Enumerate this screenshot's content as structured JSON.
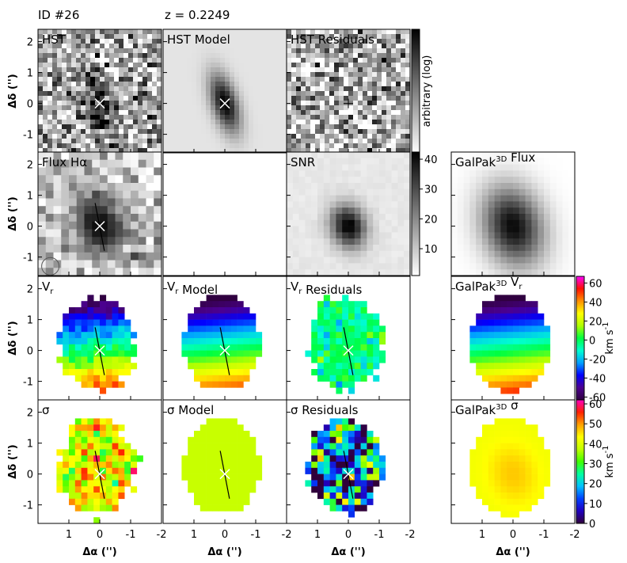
{
  "header": {
    "id": "ID #26",
    "redshift": "z = 0.2249"
  },
  "axes": {
    "xlabel": "Δα ('')",
    "ylabel": "Δδ ('')",
    "xlim": [
      2,
      -2
    ],
    "ylim": [
      -1.6,
      2.4
    ],
    "xticks": [
      1,
      0,
      -1,
      -2
    ],
    "yticks": [
      -1,
      0,
      1,
      2
    ]
  },
  "rows": [
    [
      {
        "title": [
          {
            "text": "HST"
          }
        ]
      },
      {
        "title": [
          {
            "text": "HST Model"
          }
        ]
      },
      {
        "title": [
          {
            "text": "HST Residuals"
          }
        ]
      },
      null
    ],
    [
      {
        "title": [
          {
            "text": "Flux Hα"
          }
        ]
      },
      null,
      {
        "title": [
          {
            "text": "SNR"
          }
        ]
      },
      {
        "title": [
          {
            "text": "GalPak"
          },
          {
            "sup": "3D"
          },
          {
            "text": " Flux"
          }
        ]
      }
    ],
    [
      {
        "title": [
          {
            "text": "V"
          },
          {
            "sub": "r"
          }
        ]
      },
      {
        "title": [
          {
            "text": "V"
          },
          {
            "sub": "r"
          },
          {
            "text": " Model"
          }
        ]
      },
      {
        "title": [
          {
            "text": "V"
          },
          {
            "sub": "r"
          },
          {
            "text": " Residuals"
          }
        ]
      },
      {
        "title": [
          {
            "text": "GalPak"
          },
          {
            "sup": "3D"
          },
          {
            "text": " V"
          },
          {
            "sub": "r"
          }
        ]
      }
    ],
    [
      {
        "title": [
          {
            "text": "σ"
          }
        ]
      },
      {
        "title": [
          {
            "text": "σ Model"
          }
        ]
      },
      {
        "title": [
          {
            "text": "σ Residuals"
          }
        ]
      },
      {
        "title": [
          {
            "text": "GalPak"
          },
          {
            "sup": "3D"
          },
          {
            "text": " σ"
          }
        ]
      }
    ]
  ],
  "colorbars": [
    {
      "label": [
        {
          "text": "arbitrary (log)"
        }
      ],
      "colors": [
        "#ffffff",
        "#000000"
      ]
    },
    {
      "ylim": [
        1,
        42.4
      ],
      "yticks": [
        10,
        20,
        30,
        40
      ],
      "colors": [
        "#ffffff",
        "#000000"
      ]
    },
    {
      "ylim": [
        -63,
        67
      ],
      "yticks": [
        -60,
        -40,
        -20,
        0,
        20,
        40,
        60
      ],
      "label": [
        {
          "text": "km s"
        },
        {
          "sup": "-1"
        }
      ],
      "colors": [
        "#300040",
        "#4b0090",
        "#0000ff",
        "#00a0ff",
        "#00ffd0",
        "#00ff40",
        "#b0ff00",
        "#ffff00",
        "#ff9000",
        "#ff1000",
        "#ff00ff"
      ]
    },
    {
      "ylim": [
        0,
        62
      ],
      "yticks": [
        0,
        10,
        20,
        30,
        40,
        50,
        60
      ],
      "label": [
        {
          "text": "km s"
        },
        {
          "sup": "-1"
        }
      ],
      "colors": [
        "#30003a",
        "#2000c0",
        "#0040ff",
        "#00c0ff",
        "#00ffa0",
        "#40ff00",
        "#c0ff00",
        "#ffff00",
        "#ffa000",
        "#ff2000",
        "#ff00c0"
      ]
    }
  ]
}
